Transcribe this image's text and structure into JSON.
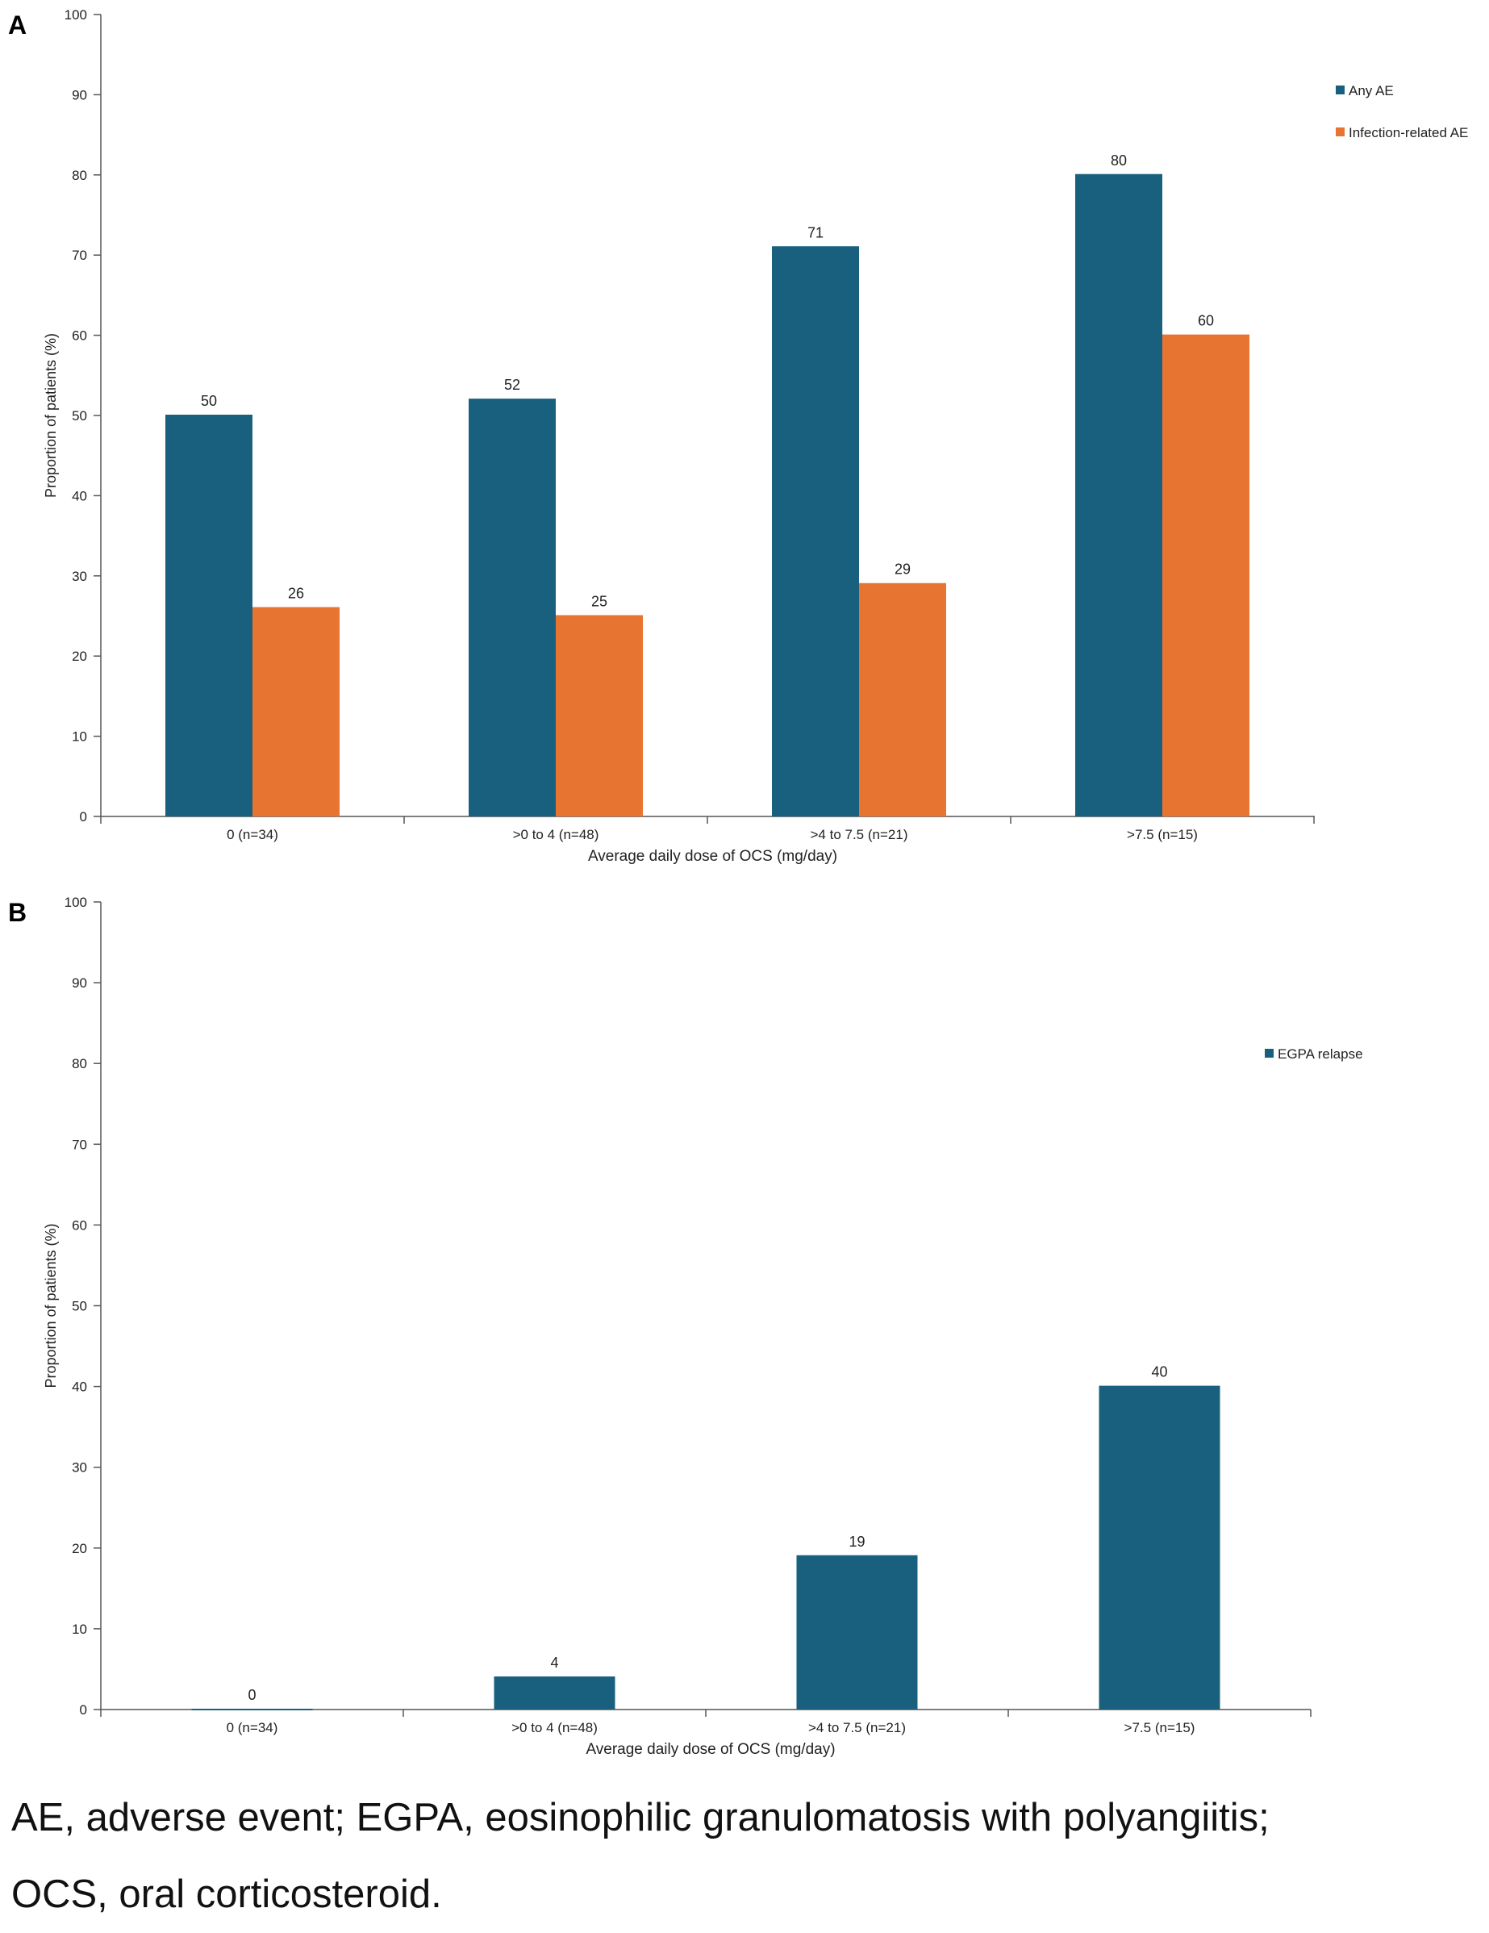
{
  "colors": {
    "any_ae": "#19607f",
    "infection": "#e87431",
    "axis": "#555555"
  },
  "chart_data": [
    {
      "panel": "A",
      "type": "bar",
      "categories": [
        "0 (n=34)",
        ">0 to 4 (n=48)",
        ">4 to 7.5 (n=21)",
        ">7.5 (n=15)"
      ],
      "series": [
        {
          "name": "Any AE",
          "values": [
            50,
            52,
            71,
            80
          ],
          "color": "#19607f"
        },
        {
          "name": "Infection-related AE",
          "values": [
            26,
            25,
            29,
            60
          ],
          "color": "#e87431"
        }
      ],
      "xlabel": "Average daily dose of OCS (mg/day)",
      "ylabel": "Proportion of patients (%)",
      "ylim": [
        0,
        100
      ],
      "yticks": [
        0,
        10,
        20,
        30,
        40,
        50,
        60,
        70,
        80,
        90,
        100
      ],
      "grid": false,
      "legend_position": "right"
    },
    {
      "panel": "B",
      "type": "bar",
      "categories": [
        "0 (n=34)",
        ">0 to 4 (n=48)",
        ">4 to 7.5 (n=21)",
        ">7.5 (n=15)"
      ],
      "series": [
        {
          "name": "EGPA relapse",
          "values": [
            0,
            4,
            19,
            40
          ],
          "color": "#19607f"
        }
      ],
      "xlabel": "Average daily dose of OCS (mg/day)",
      "ylabel": "Proportion of patients (%)",
      "ylim": [
        0,
        100
      ],
      "yticks": [
        0,
        10,
        20,
        30,
        40,
        50,
        60,
        70,
        80,
        90,
        100
      ],
      "grid": false,
      "legend_position": "right"
    }
  ],
  "footnote": {
    "line1": "AE, adverse event; EGPA, eosinophilic granulomatosis with polyangiitis;",
    "line2": "OCS, oral corticosteroid."
  }
}
